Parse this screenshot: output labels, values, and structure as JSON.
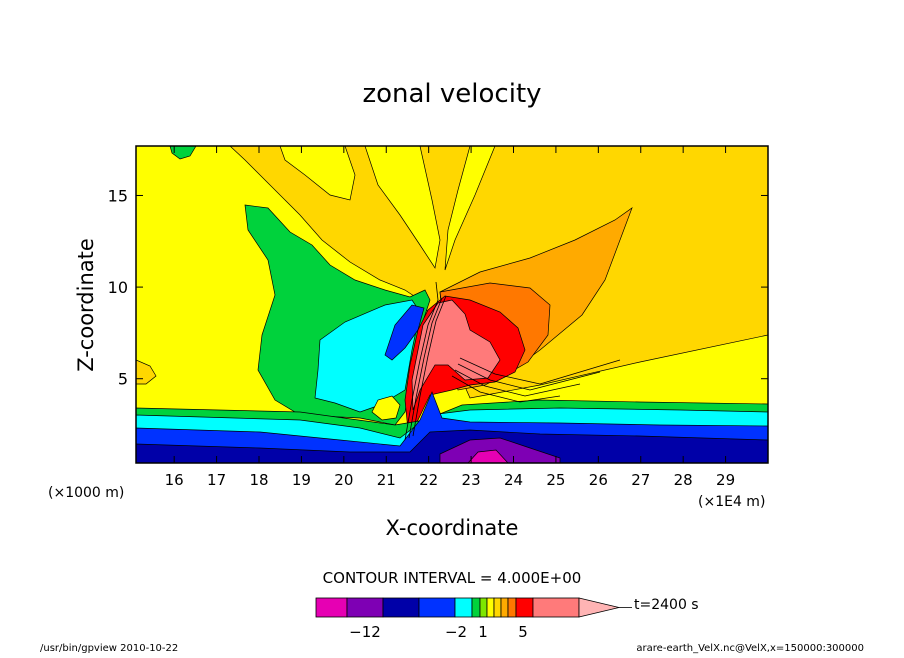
{
  "chart_data": {
    "type": "heatmap",
    "title": "zonal velocity",
    "xlabel": "X-coordinate",
    "ylabel": "Z-coordinate",
    "x_unit_left": "(×1000 m)",
    "x_unit_right": "(×1E4 m)",
    "x_ticks": [
      16,
      17,
      18,
      19,
      20,
      21,
      22,
      23,
      24,
      25,
      26,
      27,
      28,
      29
    ],
    "y_ticks": [
      5,
      10,
      15
    ],
    "xlim": [
      15.1,
      30.0
    ],
    "ylim": [
      0.4,
      17.7
    ],
    "contour_interval_text": "CONTOUR INTERVAL = 4.000E+00",
    "time_text": "t=2400 s",
    "colorbar": {
      "colors": [
        "#e600b3",
        "#7e00b4",
        "#0000a8",
        "#0032ff",
        "#00ffff",
        "#00d23c",
        "#7ee600",
        "#ffff00",
        "#ffd700",
        "#ffaa00",
        "#ff7800",
        "#ff0000",
        "#ff7a7a",
        "#ffb4b4"
      ],
      "tick_labels": [
        "−12",
        "−2",
        "1",
        "5"
      ]
    },
    "footer_left": "/usr/bin/gpview  2010-10-22",
    "footer_right": "arare-earth_VelX.nc@VelX,x=150000:300000"
  }
}
